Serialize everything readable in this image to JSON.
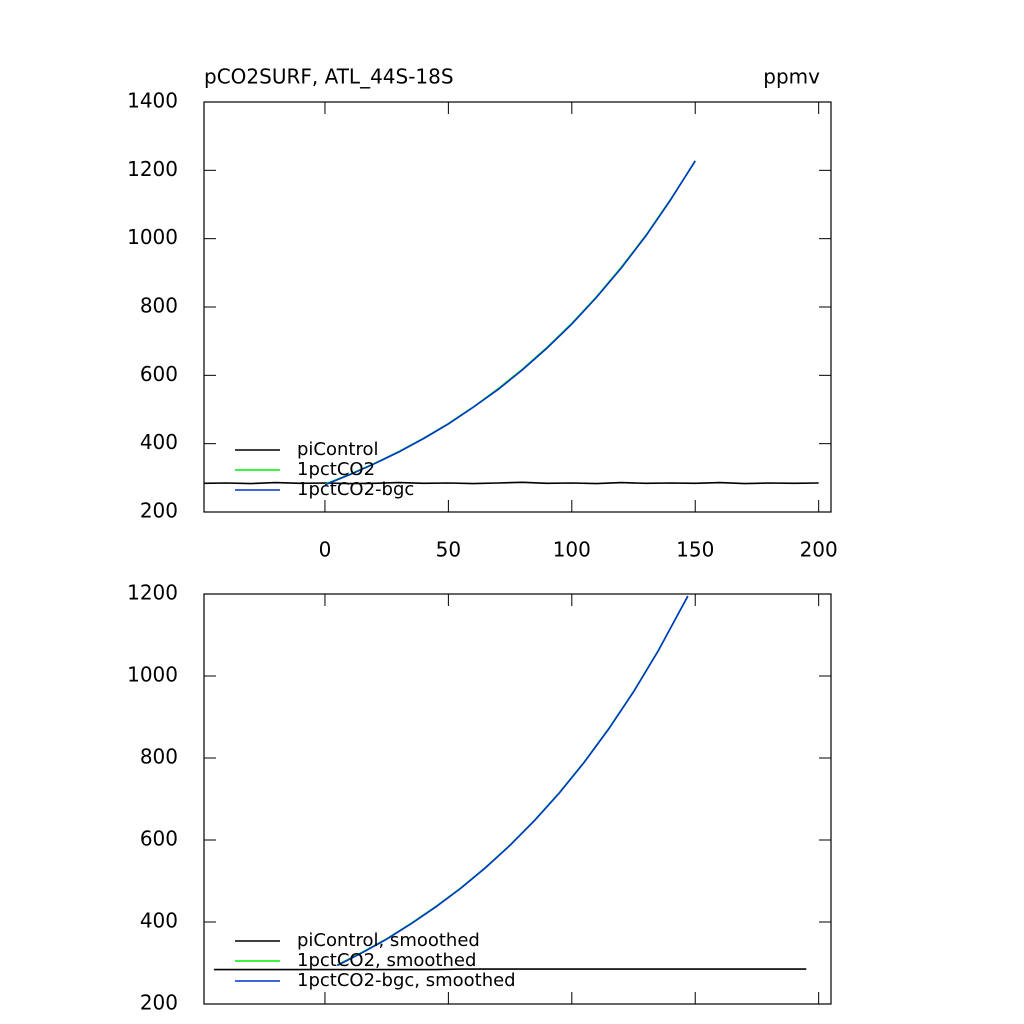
{
  "chart_data": [
    {
      "type": "line",
      "title": "pCO2SURF, ATL_44S-18S",
      "units": "ppmv",
      "xlim": [
        -49,
        205
      ],
      "xticks": [
        0,
        50,
        100,
        150,
        200
      ],
      "ylim": [
        200,
        1400
      ],
      "yticks": [
        200,
        400,
        600,
        800,
        1000,
        1200,
        1400
      ],
      "series": [
        {
          "name": "piControl",
          "color": "#000000",
          "x": [
            -49,
            -40,
            -30,
            -20,
            -10,
            0,
            10,
            20,
            30,
            40,
            50,
            60,
            70,
            80,
            90,
            100,
            110,
            120,
            130,
            140,
            150,
            160,
            170,
            180,
            190,
            200
          ],
          "values": [
            284,
            285,
            283,
            286,
            284,
            285,
            283,
            284,
            286,
            284,
            285,
            283,
            285,
            287,
            284,
            285,
            283,
            286,
            284,
            285,
            284,
            286,
            283,
            285,
            284,
            285
          ]
        },
        {
          "name": "1pctCO2",
          "color": "#00ee00",
          "x": [
            0,
            10,
            20,
            30,
            40,
            50,
            60,
            70,
            80,
            90,
            100,
            110,
            120,
            130,
            140,
            150
          ],
          "values": [
            281,
            310,
            342,
            377,
            416,
            459,
            507,
            560,
            618,
            682,
            752,
            830,
            916,
            1010,
            1115,
            1226
          ]
        },
        {
          "name": "1pctCO2-bgc",
          "color": "#0033cc",
          "x": [
            0,
            10,
            20,
            30,
            40,
            50,
            60,
            70,
            80,
            90,
            100,
            110,
            120,
            130,
            140,
            150
          ],
          "values": [
            280,
            309,
            341,
            376,
            415,
            458,
            506,
            558,
            616,
            680,
            750,
            828,
            914,
            1008,
            1113,
            1228
          ]
        }
      ]
    },
    {
      "type": "line",
      "xlim": [
        -49,
        205
      ],
      "xticks": [
        0,
        50,
        100,
        150,
        200
      ],
      "ylim": [
        200,
        1200
      ],
      "yticks": [
        200,
        400,
        600,
        800,
        1000,
        1200
      ],
      "series": [
        {
          "name": "piControl, smoothed",
          "color": "#000000",
          "x": [
            -45,
            -35,
            -25,
            -15,
            -5,
            5,
            15,
            25,
            35,
            45,
            55,
            65,
            75,
            85,
            95,
            105,
            115,
            125,
            135,
            145,
            155,
            165,
            175,
            185,
            195
          ],
          "values": [
            284,
            284,
            284,
            284,
            284,
            284,
            284,
            284,
            284,
            284,
            285,
            285,
            285,
            285,
            285,
            285,
            285,
            285,
            285,
            285,
            285,
            285,
            285,
            285,
            285
          ]
        },
        {
          "name": "1pctCO2, smoothed",
          "color": "#00ee00",
          "x": [
            5,
            15,
            25,
            35,
            45,
            55,
            65,
            75,
            85,
            95,
            105,
            115,
            125,
            135,
            147
          ],
          "values": [
            295,
            326,
            359,
            397,
            438,
            483,
            533,
            588,
            649,
            716,
            790,
            872,
            962,
            1062,
            1194
          ]
        },
        {
          "name": "1pctCO2-bgc, smoothed",
          "color": "#0033cc",
          "x": [
            5,
            15,
            25,
            35,
            45,
            55,
            65,
            75,
            85,
            95,
            105,
            115,
            125,
            135,
            147
          ],
          "values": [
            294,
            325,
            358,
            396,
            437,
            482,
            532,
            587,
            648,
            715,
            789,
            871,
            961,
            1061,
            1195
          ]
        }
      ]
    }
  ]
}
